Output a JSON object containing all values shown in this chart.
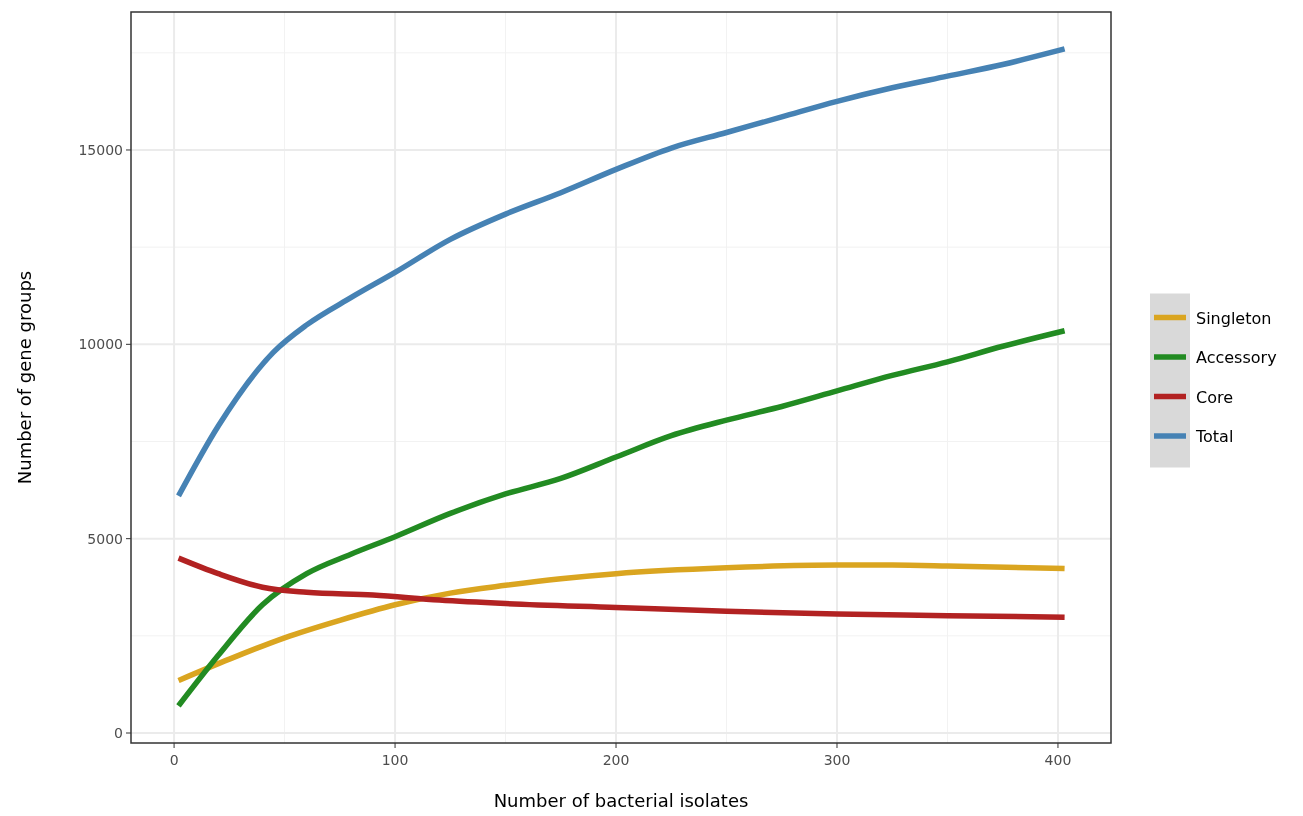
{
  "chart_data": {
    "type": "line",
    "xlabel": "Number of bacterial isolates",
    "ylabel": "Number of gene groups",
    "xlim": [
      -19.5,
      424
    ],
    "ylim": [
      -257,
      18550
    ],
    "xticks": [
      0,
      100,
      200,
      300,
      400
    ],
    "yticks": [
      0,
      5000,
      10000,
      15000
    ],
    "grid": true,
    "legend": "right",
    "line_style": "solid",
    "marker": "none",
    "series": [
      {
        "name": "Singleton",
        "color": "#daa520",
        "x": [
          2,
          25,
          50,
          75,
          100,
          125,
          150,
          175,
          200,
          250,
          300,
          325,
          350,
          403
        ],
        "values": [
          1350,
          1900,
          2450,
          2900,
          3300,
          3600,
          3800,
          3970,
          4100,
          4250,
          4320,
          4320,
          4300,
          4230
        ]
      },
      {
        "name": "Accessory",
        "color": "#228b22",
        "x": [
          2,
          20,
          40,
          60,
          80,
          100,
          125,
          150,
          175,
          200,
          225,
          250,
          275,
          300,
          325,
          350,
          375,
          403
        ],
        "values": [
          700,
          2000,
          3300,
          4100,
          4600,
          5050,
          5650,
          6150,
          6550,
          7100,
          7650,
          8050,
          8400,
          8800,
          9200,
          9550,
          9950,
          10350
        ]
      },
      {
        "name": "Core",
        "color": "#b22222",
        "x": [
          2,
          20,
          40,
          60,
          90,
          120,
          150,
          200,
          250,
          300,
          350,
          403
        ],
        "values": [
          4500,
          4100,
          3750,
          3620,
          3550,
          3420,
          3330,
          3230,
          3130,
          3060,
          3020,
          2980
        ]
      },
      {
        "name": "Total",
        "color": "#4682b4",
        "x": [
          2,
          20,
          45,
          60,
          80,
          100,
          125,
          150,
          175,
          200,
          225,
          250,
          275,
          300,
          325,
          350,
          375,
          403
        ],
        "values": [
          6100,
          7900,
          9800,
          10500,
          11200,
          11850,
          12700,
          13350,
          13900,
          14500,
          15050,
          15450,
          15850,
          16250,
          16600,
          16900,
          17200,
          17600
        ]
      }
    ]
  }
}
